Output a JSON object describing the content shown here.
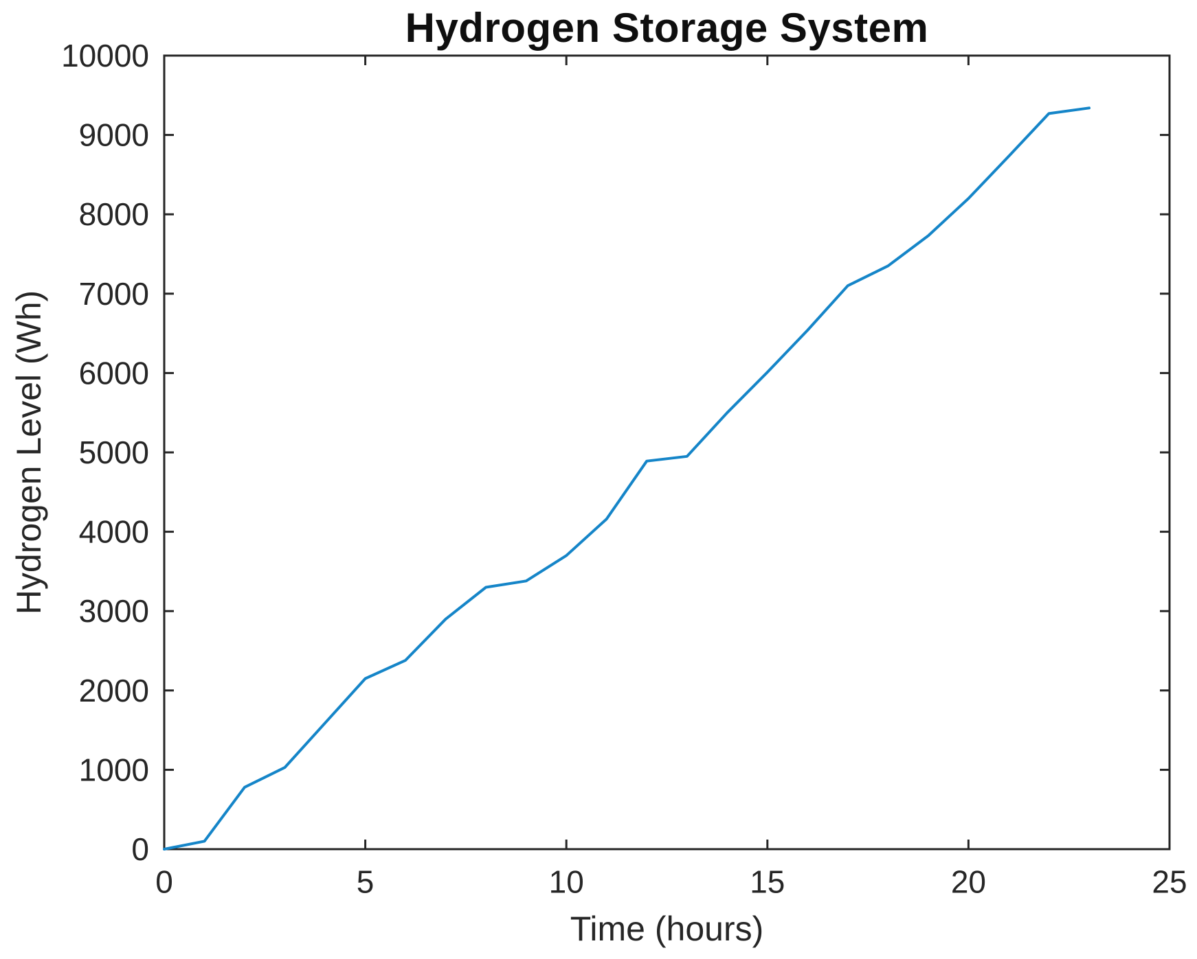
{
  "figure": {
    "title": "Hydrogen Storage System",
    "xlabel": "Time (hours)",
    "ylabel": "Hydrogen Level (Wh)"
  },
  "chart_data": {
    "type": "line",
    "title": "Hydrogen Storage System",
    "xlabel": "Time (hours)",
    "ylabel": "Hydrogen Level (Wh)",
    "x": [
      0,
      1,
      2,
      3,
      4,
      5,
      6,
      7,
      8,
      9,
      10,
      11,
      12,
      13,
      14,
      15,
      16,
      17,
      18,
      19,
      20,
      21,
      22,
      23
    ],
    "y": [
      0,
      100,
      780,
      1030,
      1590,
      2150,
      2380,
      2900,
      3300,
      3380,
      3700,
      4160,
      4890,
      4950,
      5500,
      6010,
      6540,
      7100,
      7350,
      7730,
      8200,
      8730,
      9270,
      9340
    ],
    "xlim": [
      0,
      25
    ],
    "ylim": [
      0,
      10000
    ],
    "xticks": [
      0,
      5,
      10,
      15,
      20,
      25
    ],
    "yticks": [
      0,
      1000,
      2000,
      3000,
      4000,
      5000,
      6000,
      7000,
      8000,
      9000,
      10000
    ],
    "xtick_labels": [
      "0",
      "5",
      "10",
      "15",
      "20",
      "25"
    ],
    "ytick_labels": [
      "0",
      "1000",
      "2000",
      "3000",
      "4000",
      "5000",
      "6000",
      "7000",
      "8000",
      "9000",
      "10000"
    ],
    "series_name": "Hydrogen Level",
    "line_color": "#1585C8",
    "axis_color": "#262626",
    "grid": false,
    "legend_position": "none",
    "box": true
  }
}
